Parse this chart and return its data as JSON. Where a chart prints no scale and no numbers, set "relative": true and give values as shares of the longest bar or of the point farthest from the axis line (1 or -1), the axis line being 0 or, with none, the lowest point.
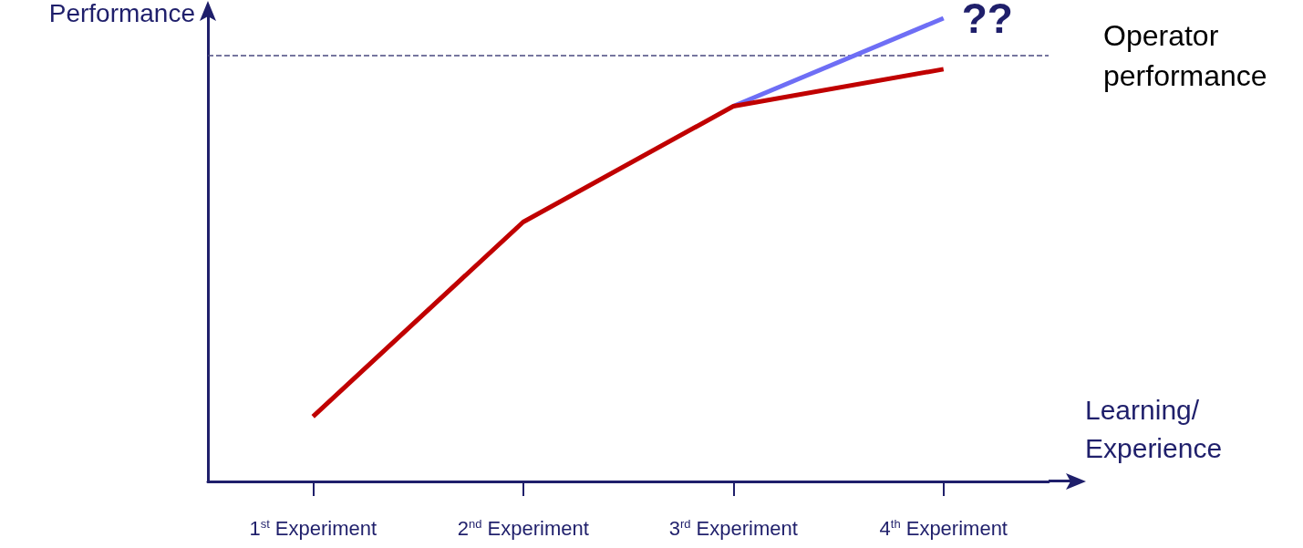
{
  "chart_data": {
    "type": "line",
    "relative": true,
    "xlabel": "Learning/ Experience",
    "ylabel": "Performance",
    "categories": [
      "1$^{st}$ Experiment",
      "2$^{nd}$ Experiment",
      "3$^{rd}$ Experiment",
      "4$^{th}$ Experiment"
    ],
    "series": [
      {
        "color": "#c00000",
        "values": [
          0.14,
          0.56,
          0.81,
          0.89
        ]
      },
      {
        "color": "#6e6ef5",
        "values": [
          null,
          null,
          0.81,
          1
        ]
      }
    ],
    "ref_lines": [
      {
        "axis": "y",
        "value": 0.92,
        "label": "Operator performance",
        "color": "#4a4a80",
        "line_style": "dashed"
      }
    ],
    "annotations": [
      {
        "text": "??",
        "x": "4$^{th}$ Experiment",
        "y": 1
      }
    ],
    "grid": false
  }
}
